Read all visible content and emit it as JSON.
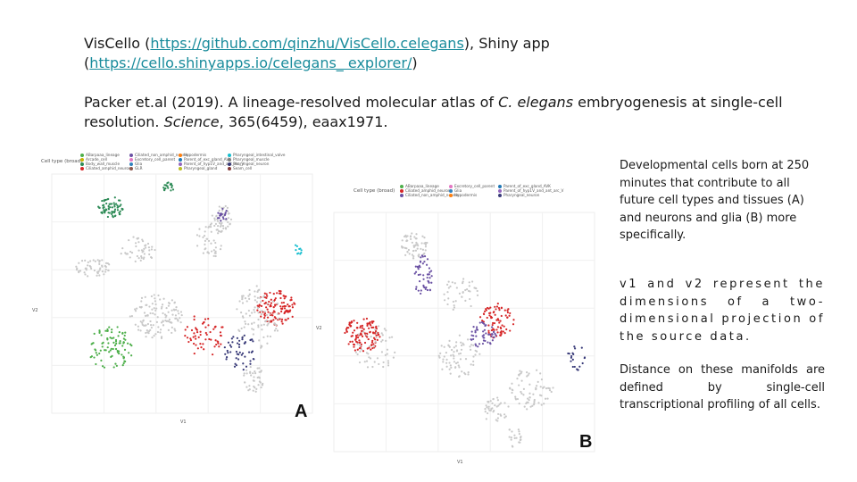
{
  "ref1": {
    "prefix": "VisCello (",
    "link1": "https://github.com/qinzhu/VisCello.celegans",
    "mid": "), Shiny app (",
    "link2": "https://cello.shinyapps.io/celegans_ explorer/",
    "suffix": ")"
  },
  "ref2": {
    "before_italic": "Packer et.al (2019). A lineage-resolved molecular atlas of ",
    "italic_species": "C. elegans",
    "after_species": " embryogenesis at single-cell resolution. ",
    "journal": "Science",
    "citation": ", 365(6459), eaax1971."
  },
  "notes": [
    "Developmental cells born at 250 minutes that contribute to all future cell types and tissues (A) and neurons and glia (B) more specifically.",
    "v1 and v2 represent the dimensions of a two-dimensional projection of the source data.",
    "Distance on these manifolds are defined by single-cell transcriptional profiling of all cells."
  ],
  "panelA": {
    "letter": "A",
    "legend_title": "Cell type (broad)",
    "legend": [
      {
        "label": "ABarpaaa_lineage",
        "color": "#4daf4a"
      },
      {
        "label": "Arcade_cell",
        "color": "#c8b400"
      },
      {
        "label": "Body_wall_muscle",
        "color": "#2e8b57"
      },
      {
        "label": "Ciliated_amphid_neuron",
        "color": "#d62728"
      },
      {
        "label": "Ciliated_non_amphid_neuron",
        "color": "#6a51a3"
      },
      {
        "label": "Excretory_cell_parent",
        "color": "#e377c2"
      },
      {
        "label": "Glia",
        "color": "#3182bd"
      },
      {
        "label": "GLR",
        "color": "#8c564b"
      },
      {
        "label": "Hypodermis",
        "color": "#ff7f0e"
      },
      {
        "label": "Parent_of_exc_gland_AVK",
        "color": "#1f77b4"
      },
      {
        "label": "Parent_of_hyp1V_and_ant_arc_V",
        "color": "#9467bd"
      },
      {
        "label": "Pharyngeal_gland",
        "color": "#bcbd22"
      },
      {
        "label": "Pharyngeal_intestinal_valve",
        "color": "#17becf"
      },
      {
        "label": "Pharyngeal_muscle",
        "color": "#7f7f7f"
      },
      {
        "label": "Pharyngeal_neuron",
        "color": "#393b79"
      },
      {
        "label": "Seam_cell",
        "color": "#843c39"
      }
    ],
    "xlabel": "V1",
    "ylabel": "V2"
  },
  "panelB": {
    "letter": "B",
    "legend_title": "Cell type (broad)",
    "legend": [
      {
        "label": "ABarpaaa_lineage",
        "color": "#4daf4a"
      },
      {
        "label": "Ciliated_amphid_neuron",
        "color": "#d62728"
      },
      {
        "label": "Ciliated_non_amphid_neuron",
        "color": "#6a51a3"
      },
      {
        "label": "Excretory_cell_parent",
        "color": "#e377c2"
      },
      {
        "label": "Glia",
        "color": "#3182bd"
      },
      {
        "label": "Hypodermis",
        "color": "#ff7f0e"
      },
      {
        "label": "Parent_of_exc_gland_AVK",
        "color": "#1f77b4"
      },
      {
        "label": "Parent_of_hyp1V_and_ant_arc_V",
        "color": "#9467bd"
      },
      {
        "label": "Pharyngeal_neuron",
        "color": "#393b79"
      }
    ],
    "xlabel": "V1",
    "ylabel": "V2"
  }
}
